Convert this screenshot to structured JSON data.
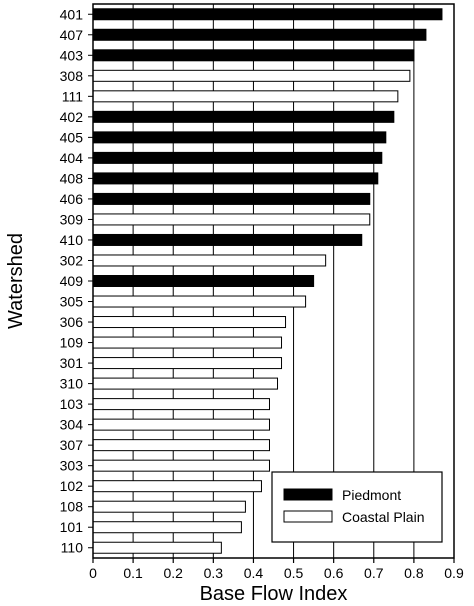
{
  "chart_data": {
    "type": "bar",
    "orientation": "horizontal",
    "xlabel": "Base Flow Index",
    "ylabel": "Watershed",
    "xlim": [
      0,
      0.9
    ],
    "xticks": [
      "0",
      "0.1",
      "0.2",
      "0.3",
      "0.4",
      "0.5",
      "0.6",
      "0.7",
      "0.8",
      "0.9"
    ],
    "grid": "vertical",
    "legend": {
      "placement": "bottom-right",
      "entries": [
        {
          "name": "Piedmont",
          "color": "#000000"
        },
        {
          "name": "Coastal Plain",
          "color": "#ffffff"
        }
      ]
    },
    "categories": [
      "401",
      "407",
      "403",
      "308",
      "111",
      "402",
      "405",
      "404",
      "408",
      "406",
      "309",
      "410",
      "302",
      "409",
      "305",
      "306",
      "109",
      "301",
      "310",
      "103",
      "304",
      "307",
      "303",
      "102",
      "108",
      "101",
      "110"
    ],
    "values": [
      0.87,
      0.83,
      0.8,
      0.79,
      0.76,
      0.75,
      0.73,
      0.72,
      0.71,
      0.69,
      0.69,
      0.67,
      0.58,
      0.55,
      0.53,
      0.48,
      0.47,
      0.47,
      0.46,
      0.44,
      0.44,
      0.44,
      0.44,
      0.42,
      0.38,
      0.37,
      0.32
    ],
    "region": [
      "Piedmont",
      "Piedmont",
      "Piedmont",
      "Coastal Plain",
      "Coastal Plain",
      "Piedmont",
      "Piedmont",
      "Piedmont",
      "Piedmont",
      "Piedmont",
      "Coastal Plain",
      "Piedmont",
      "Coastal Plain",
      "Piedmont",
      "Coastal Plain",
      "Coastal Plain",
      "Coastal Plain",
      "Coastal Plain",
      "Coastal Plain",
      "Coastal Plain",
      "Coastal Plain",
      "Coastal Plain",
      "Coastal Plain",
      "Coastal Plain",
      "Coastal Plain",
      "Coastal Plain",
      "Coastal Plain"
    ]
  }
}
